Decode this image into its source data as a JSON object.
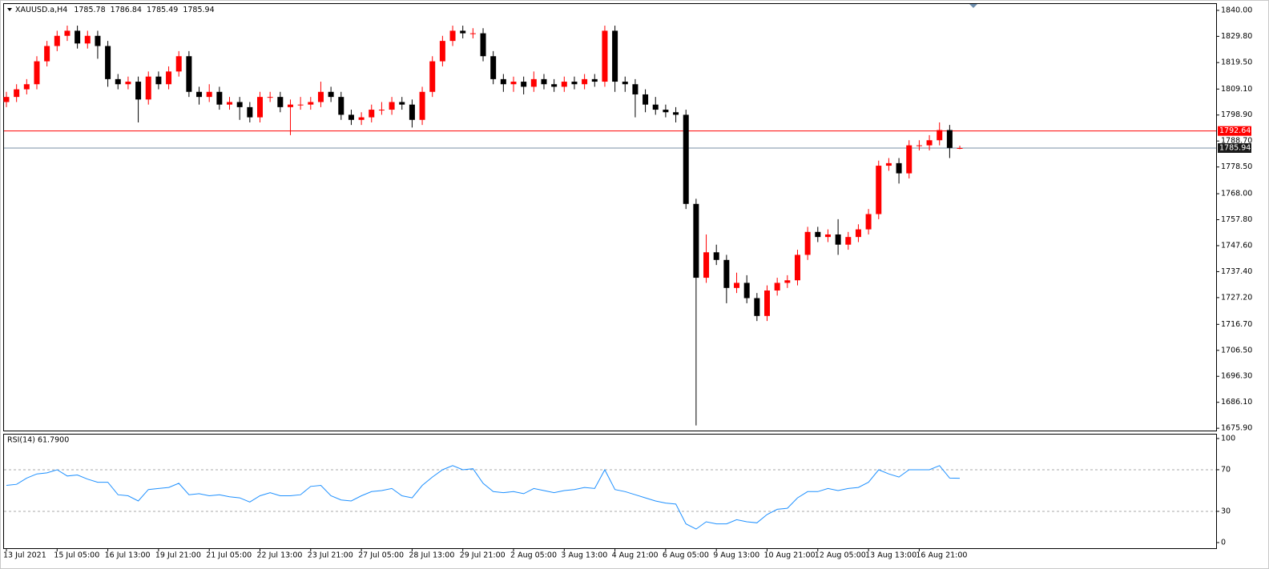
{
  "chart_data": [
    {
      "type": "candlestick",
      "title": "XAUUSD.a,H4",
      "categories": [
        "13 Jul 2021",
        null,
        null,
        null,
        null,
        "15 Jul 05:00",
        null,
        null,
        null,
        null,
        "16 Jul 13:00",
        null,
        null,
        null,
        null,
        "19 Jul 21:00",
        null,
        null,
        null,
        null,
        "21 Jul 05:00",
        null,
        null,
        null,
        null,
        "22 Jul 13:00",
        null,
        null,
        null,
        null,
        "23 Jul 21:00",
        null,
        null,
        null,
        null,
        "27 Jul 05:00",
        null,
        null,
        null,
        null,
        "28 Jul 13:00",
        null,
        null,
        null,
        null,
        "29 Jul 21:00",
        null,
        null,
        null,
        null,
        "2 Aug 05:00",
        null,
        null,
        null,
        null,
        "3 Aug 13:00",
        null,
        null,
        null,
        null,
        "4 Aug 21:00",
        null,
        null,
        null,
        null,
        "6 Aug 05:00",
        null,
        null,
        null,
        null,
        "9 Aug 13:00",
        null,
        null,
        null,
        null,
        "10 Aug 21:00",
        null,
        null,
        null,
        null,
        "12 Aug 05:00",
        null,
        null,
        null,
        null,
        "13 Aug 13:00",
        null,
        null,
        null,
        null,
        "16 Aug 21:00",
        null,
        null,
        null,
        null
      ],
      "open": [
        1804,
        1806,
        1809,
        1811,
        1820,
        1826,
        1830,
        1832,
        1827,
        1830,
        1826,
        1813,
        1811,
        1812,
        1805,
        1814,
        1811,
        1816,
        1822,
        1808,
        1806,
        1808,
        1803,
        1804,
        1802,
        1798,
        1806,
        1806,
        1802,
        1803,
        1803,
        1804,
        1808,
        1806,
        1799,
        1797,
        1798,
        1801,
        1801,
        1804,
        1803,
        1797,
        1808,
        1820,
        1828,
        1832,
        1831,
        1831,
        1822,
        1813,
        1811,
        1812,
        1810,
        1813,
        1811,
        1810,
        1812,
        1811,
        1813,
        1812,
        1832,
        1812,
        1811,
        1807,
        1803,
        1801,
        1800,
        1799,
        1764,
        1735,
        1745,
        1742,
        1731,
        1733,
        1727,
        1720,
        1730,
        1733,
        1734,
        1744,
        1753,
        1751,
        1752,
        1748,
        1751,
        1754,
        1760,
        1779,
        1780,
        1776,
        1787,
        1787,
        1789,
        1793,
        1785.78
      ],
      "high": [
        1808,
        1811,
        1813,
        1822,
        1828,
        1832,
        1834,
        1834,
        1832,
        1832,
        1828,
        1815,
        1814,
        1814,
        1816,
        1816,
        1818,
        1824,
        1824,
        1810,
        1811,
        1810,
        1806,
        1806,
        1804,
        1808,
        1808,
        1808,
        1805,
        1806,
        1806,
        1812,
        1810,
        1808,
        1801,
        1800,
        1803,
        1804,
        1806,
        1806,
        1805,
        1810,
        1822,
        1830,
        1834,
        1834,
        1833,
        1833,
        1824,
        1815,
        1814,
        1814,
        1816,
        1815,
        1813,
        1814,
        1814,
        1815,
        1815,
        1834,
        1834,
        1814,
        1813,
        1809,
        1806,
        1803,
        1802,
        1801,
        1766,
        1752,
        1748,
        1744,
        1737,
        1736,
        1729,
        1732,
        1735,
        1736,
        1746,
        1755,
        1755,
        1754,
        1758,
        1753,
        1756,
        1762,
        1781,
        1782,
        1782,
        1789,
        1789,
        1791,
        1796,
        1795,
        1786.84
      ],
      "low": [
        1802,
        1804,
        1807,
        1809,
        1818,
        1824,
        1828,
        1825,
        1825,
        1821,
        1810,
        1809,
        1809,
        1796,
        1803,
        1809,
        1809,
        1814,
        1806,
        1803,
        1804,
        1801,
        1801,
        1797,
        1796,
        1796,
        1804,
        1800,
        1791,
        1801,
        1801,
        1802,
        1804,
        1797,
        1795,
        1795,
        1796,
        1799,
        1799,
        1801,
        1794,
        1795,
        1806,
        1818,
        1826,
        1829,
        1829,
        1820,
        1811,
        1808,
        1808,
        1807,
        1808,
        1809,
        1808,
        1808,
        1809,
        1809,
        1810,
        1810,
        1808,
        1808,
        1798,
        1800,
        1799,
        1798,
        1796,
        1762,
        1677,
        1733,
        1740,
        1725,
        1729,
        1725,
        1718,
        1718,
        1728,
        1731,
        1732,
        1742,
        1749,
        1749,
        1744,
        1746,
        1749,
        1752,
        1758,
        1777,
        1772,
        1774,
        1785,
        1785,
        1787,
        1782,
        1785.49
      ],
      "close": [
        1806,
        1809,
        1811,
        1820,
        1826,
        1830,
        1832,
        1827,
        1830,
        1826,
        1813,
        1811,
        1812,
        1805,
        1814,
        1811,
        1816,
        1822,
        1808,
        1806,
        1808,
        1803,
        1804,
        1802,
        1798,
        1806,
        1806,
        1802,
        1803,
        1803,
        1804,
        1808,
        1806,
        1799,
        1797,
        1798,
        1801,
        1801,
        1804,
        1803,
        1797,
        1808,
        1820,
        1828,
        1832,
        1831,
        1831,
        1822,
        1813,
        1811,
        1812,
        1810,
        1813,
        1811,
        1810,
        1812,
        1811,
        1813,
        1812,
        1832,
        1812,
        1811,
        1807,
        1803,
        1801,
        1800,
        1799,
        1764,
        1735,
        1745,
        1742,
        1731,
        1733,
        1727,
        1720,
        1730,
        1733,
        1734,
        1744,
        1753,
        1751,
        1752,
        1748,
        1751,
        1754,
        1760,
        1779,
        1780,
        1776,
        1787,
        1787,
        1789,
        1793,
        1786,
        1785.94
      ],
      "up_color": "#ff0000",
      "down_color": "#000000",
      "ylim": [
        1675.0,
        1842.5
      ],
      "yticks": [
        {
          "value": 1840,
          "label": "1840.00"
        },
        {
          "value": 1829.8,
          "label": "1829.80"
        },
        {
          "value": 1819.5,
          "label": "1819.50"
        },
        {
          "value": 1809.1,
          "label": "1809.10"
        },
        {
          "value": 1798.9,
          "label": "1798.90"
        },
        {
          "value": 1788.7,
          "label": "1788.70"
        },
        {
          "value": 1778.5,
          "label": "1778.50"
        },
        {
          "value": 1768,
          "label": "1768.00"
        },
        {
          "value": 1757.8,
          "label": "1757.80"
        },
        {
          "value": 1747.6,
          "label": "1747.60"
        },
        {
          "value": 1737.4,
          "label": "1737.40"
        },
        {
          "value": 1727.2,
          "label": "1727.20"
        },
        {
          "value": 1716.7,
          "label": "1716.70"
        },
        {
          "value": 1706.5,
          "label": "1706.50"
        },
        {
          "value": 1696.3,
          "label": "1696.30"
        },
        {
          "value": 1686.1,
          "label": "1686.10"
        },
        {
          "value": 1675.9,
          "label": "1675.90"
        }
      ],
      "price_lines": [
        {
          "value": 1792.64,
          "color": "#ff0000"
        },
        {
          "value": 1785.94,
          "color": "#7a8fa6"
        }
      ]
    },
    {
      "type": "line",
      "title": "RSI(14) 61.7900",
      "color": "#1e90ff",
      "values": [
        55,
        56,
        62,
        66,
        67,
        70,
        64,
        65,
        61,
        58,
        58,
        46,
        45,
        40,
        51,
        52,
        53,
        57,
        46,
        47,
        45,
        46,
        44,
        43,
        39,
        45,
        48,
        45,
        45,
        46,
        54,
        55,
        45,
        41,
        40,
        45,
        49,
        50,
        52,
        45,
        43,
        55,
        63,
        70,
        74,
        70,
        71,
        57,
        49,
        48,
        49,
        47,
        52,
        50,
        48,
        50,
        51,
        53,
        52,
        70,
        51,
        49,
        46,
        43,
        40,
        38,
        37,
        18,
        13,
        20,
        18,
        18,
        22,
        20,
        19,
        27,
        32,
        33,
        43,
        49,
        49,
        52,
        50,
        52,
        53,
        58,
        70,
        66,
        63,
        70,
        70,
        70,
        74,
        62,
        61.79
      ],
      "ylim": [
        -5.4,
        103.8
      ],
      "yticks": [
        100,
        70,
        30,
        0
      ],
      "levels": [
        70,
        30
      ]
    }
  ]
}
